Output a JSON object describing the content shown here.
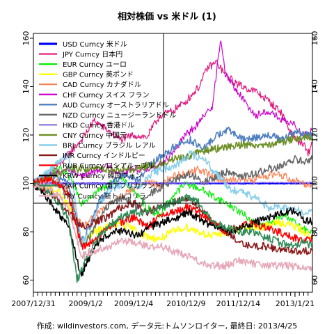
{
  "chart_data": {
    "type": "line",
    "title": "相対株価 vs 米ドル (1)",
    "caption": "作成: wildinvestors.com, データ元:トムソンロイター, 最終日: 2013/4/25",
    "x_tick_labels": [
      "2007/12/31",
      "2009/1/2",
      "2009/12/4",
      "2010/12/9",
      "2011/12/14",
      "2013/1/21"
    ],
    "x_ticks": [
      0,
      12,
      23,
      35,
      47,
      60
    ],
    "x_range": [
      0,
      64
    ],
    "y_ticks": [
      60,
      80,
      100,
      120,
      140,
      160
    ],
    "ylim": [
      55,
      162
    ],
    "grid": false,
    "legend_position": "top-left",
    "series": [
      {
        "name": "USD Curncy 米ドル",
        "color": "#0000ff",
        "width": 2.5,
        "dash": "",
        "x": [
          0,
          64
        ],
        "values": [
          100,
          100
        ]
      },
      {
        "name": "JPY Curncy 日本円",
        "color": "#e0157a",
        "width": 1.2,
        "dash": "",
        "x": [
          0,
          4,
          8,
          11,
          14,
          17,
          20,
          23,
          26,
          29,
          32,
          35,
          38,
          40,
          42,
          44,
          46,
          48,
          51,
          54,
          57,
          59,
          61,
          62,
          63,
          64
        ],
        "values": [
          100,
          104,
          112,
          118,
          126,
          122,
          118,
          120,
          119,
          128,
          130,
          134,
          140,
          148,
          150,
          145,
          142,
          140,
          138,
          134,
          129,
          121,
          117,
          116,
          112,
          117
        ]
      },
      {
        "name": "EUR Curncy ユーロ",
        "color": "#00ee00",
        "width": 1.2,
        "dash": "",
        "x": [
          0,
          3,
          6,
          9,
          11,
          14,
          17,
          20,
          23,
          26,
          29,
          32,
          35,
          38,
          40,
          43,
          46,
          49,
          52,
          55,
          58,
          61,
          64
        ],
        "values": [
          100,
          103,
          106,
          101,
          92,
          96,
          99,
          102,
          97,
          90,
          87,
          95,
          100,
          98,
          96,
          93,
          90,
          86,
          82,
          84,
          87,
          82,
          79
        ]
      },
      {
        "name": "GBP Curncy 英ポンド",
        "color": "#ffff00",
        "width": 1.6,
        "dash": "",
        "x": [
          0,
          3,
          6,
          9,
          11,
          14,
          17,
          20,
          23,
          26,
          29,
          32,
          35,
          38,
          41,
          44,
          47,
          50,
          53,
          56,
          59,
          62,
          64
        ],
        "values": [
          100,
          98,
          96,
          88,
          76,
          80,
          82,
          83,
          81,
          78,
          77,
          80,
          82,
          80,
          78,
          80,
          81,
          82,
          82,
          84,
          83,
          80,
          78
        ]
      },
      {
        "name": "CAD Curncy カナダドル",
        "color": "#ff7f50",
        "width": 1.2,
        "dash": "",
        "x": [
          0,
          4,
          8,
          11,
          14,
          17,
          20,
          23,
          26,
          29,
          32,
          35,
          38,
          41,
          44,
          47,
          50,
          53,
          56,
          59,
          62,
          64
        ],
        "values": [
          100,
          102,
          98,
          82,
          86,
          91,
          95,
          98,
          101,
          99,
          103,
          104,
          106,
          103,
          101,
          102,
          101,
          103,
          104,
          102,
          100,
          99
        ]
      },
      {
        "name": "CHF Curncy スイス フラン",
        "color": "#cc00cc",
        "width": 1.2,
        "dash": "",
        "x": [
          0,
          4,
          8,
          11,
          14,
          17,
          20,
          23,
          26,
          29,
          32,
          35,
          38,
          41,
          43,
          44,
          46,
          48,
          51,
          54,
          57,
          60,
          62,
          64
        ],
        "values": [
          100,
          104,
          106,
          103,
          105,
          107,
          104,
          106,
          106,
          108,
          113,
          120,
          125,
          132,
          160,
          145,
          140,
          135,
          128,
          130,
          126,
          124,
          120,
          122
        ]
      },
      {
        "name": "AUD Curncy オーストラリアドル",
        "color": "#4f7fbf",
        "width": 1.6,
        "dash": "",
        "x": [
          0,
          4,
          8,
          11,
          13,
          15,
          18,
          21,
          24,
          27,
          30,
          33,
          36,
          39,
          42,
          45,
          48,
          51,
          54,
          57,
          60,
          62,
          64
        ],
        "values": [
          100,
          104,
          100,
          76,
          82,
          92,
          100,
          104,
          101,
          108,
          112,
          116,
          118,
          114,
          120,
          122,
          118,
          119,
          120,
          118,
          121,
          120,
          120
        ]
      },
      {
        "name": "NZD Curncy ニュージーランドドル",
        "color": "#696969",
        "width": 1.6,
        "dash": "",
        "x": [
          0,
          4,
          8,
          11,
          13,
          15,
          18,
          21,
          24,
          27,
          30,
          33,
          36,
          39,
          42,
          45,
          48,
          51,
          54,
          57,
          60,
          62,
          64
        ],
        "values": [
          100,
          102,
          96,
          74,
          78,
          86,
          92,
          94,
          90,
          96,
          99,
          102,
          104,
          100,
          103,
          105,
          103,
          104,
          106,
          107,
          110,
          109,
          110
        ]
      },
      {
        "name": "HKD Curncy 香港ドル",
        "color": "#9370db",
        "width": 1.4,
        "dash": "",
        "x": [
          0,
          64
        ],
        "values": [
          100,
          100.4
        ]
      },
      {
        "name": "CNY Curncy 中国元",
        "color": "#6b8e23",
        "width": 1.6,
        "dash": "",
        "x": [
          0,
          4,
          8,
          11,
          14,
          17,
          20,
          23,
          26,
          29,
          32,
          35,
          38,
          41,
          44,
          47,
          50,
          53,
          56,
          59,
          62,
          64
        ],
        "values": [
          100,
          103,
          106,
          106,
          106,
          106,
          106,
          106,
          107,
          108,
          110,
          111,
          113,
          114,
          115,
          116,
          116,
          116,
          117,
          118,
          119,
          119
        ]
      },
      {
        "name": "BRL Curncy ブラジル レアル",
        "color": "#87ceeb",
        "width": 1.6,
        "dash": "",
        "x": [
          0,
          4,
          8,
          11,
          13,
          15,
          18,
          21,
          24,
          27,
          30,
          33,
          36,
          39,
          42,
          45,
          48,
          51,
          54,
          57,
          60,
          62,
          64
        ],
        "values": [
          100,
          106,
          112,
          75,
          80,
          92,
          98,
          100,
          98,
          104,
          106,
          108,
          112,
          110,
          104,
          98,
          96,
          94,
          90,
          90,
          89,
          88,
          89
        ]
      },
      {
        "name": "INR Curncy インドルピー",
        "color": "#8b1a1a",
        "width": 1.6,
        "dash": "",
        "x": [
          0,
          4,
          8,
          11,
          14,
          17,
          20,
          23,
          26,
          29,
          32,
          35,
          38,
          41,
          44,
          47,
          50,
          53,
          56,
          59,
          62,
          64
        ],
        "values": [
          100,
          96,
          88,
          82,
          84,
          86,
          90,
          92,
          88,
          90,
          92,
          94,
          90,
          84,
          80,
          76,
          74,
          74,
          73,
          72,
          72,
          72
        ]
      },
      {
        "name": "RUB Curncy ロシアルーブル",
        "color": "#ff0000",
        "width": 1.6,
        "dash": "",
        "x": [
          0,
          4,
          8,
          11,
          14,
          17,
          20,
          23,
          26,
          29,
          32,
          35,
          38,
          41,
          44,
          47,
          50,
          53,
          56,
          59,
          62,
          64
        ],
        "values": [
          100,
          102,
          96,
          74,
          76,
          82,
          84,
          86,
          82,
          86,
          88,
          90,
          88,
          84,
          80,
          82,
          84,
          82,
          80,
          78,
          76,
          77
        ]
      },
      {
        "name": "KRW Curncy 韓国ウォン",
        "color": "#000000",
        "width": 1.6,
        "dash": "",
        "x": [
          0,
          4,
          8,
          11,
          13,
          15,
          18,
          21,
          24,
          27,
          30,
          33,
          36,
          39,
          42,
          45,
          48,
          51,
          54,
          57,
          60,
          62,
          64
        ],
        "values": [
          100,
          92,
          82,
          62,
          70,
          76,
          80,
          80,
          78,
          82,
          84,
          86,
          88,
          84,
          82,
          80,
          82,
          84,
          86,
          88,
          89,
          85,
          84
        ]
      },
      {
        "name": "ZAR Curncy 南アフリカランド",
        "color": "#2e8b57",
        "width": 1.6,
        "dash": "",
        "x": [
          0,
          4,
          8,
          10,
          12,
          14,
          17,
          20,
          23,
          26,
          29,
          32,
          35,
          38,
          41,
          44,
          47,
          50,
          53,
          56,
          59,
          62,
          64
        ],
        "values": [
          100,
          96,
          86,
          60,
          68,
          76,
          82,
          86,
          88,
          88,
          90,
          92,
          94,
          92,
          84,
          82,
          80,
          80,
          78,
          76,
          74,
          76,
          74
        ]
      },
      {
        "name": "TRY Curncy 新トルコリラ",
        "color": "#e6a8b8",
        "width": 1.6,
        "dash": "",
        "x": [
          0,
          4,
          8,
          11,
          14,
          17,
          20,
          23,
          26,
          29,
          32,
          35,
          38,
          41,
          44,
          47,
          50,
          53,
          56,
          59,
          62,
          64
        ],
        "values": [
          100,
          98,
          90,
          70,
          72,
          74,
          76,
          76,
          74,
          74,
          72,
          70,
          68,
          66,
          66,
          68,
          67,
          66,
          66,
          66,
          65,
          65
        ]
      }
    ]
  }
}
